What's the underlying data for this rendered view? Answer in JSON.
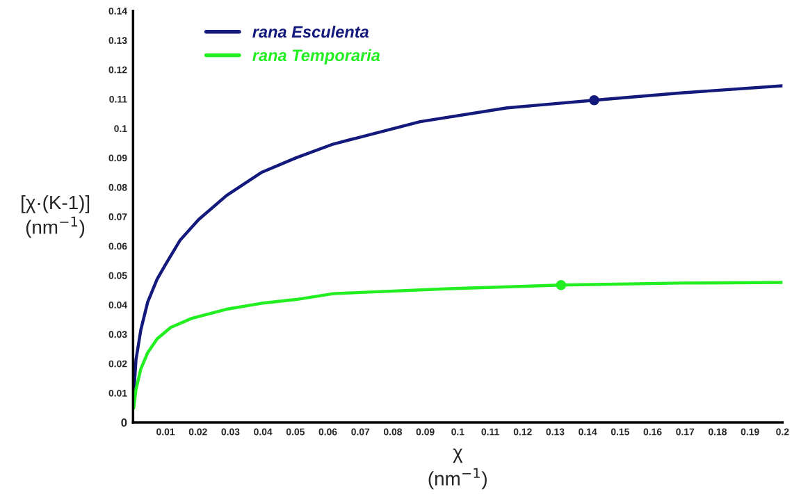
{
  "chart_data": {
    "type": "line",
    "xlabel": "χ\n(nm$^{−1}$)",
    "ylabel": "[χ·(K-1)]\n(nm$^{−1}$)",
    "series": [
      {
        "name": "rana Esculenta",
        "color": "#141a7c",
        "x": [
          0.0002,
          0.0009,
          0.0024,
          0.0045,
          0.0074,
          0.0102,
          0.0145,
          0.0202,
          0.0288,
          0.0395,
          0.0502,
          0.0617,
          0.0884,
          0.1152,
          0.142,
          0.1687,
          0.2
        ],
        "values": [
          0.0096,
          0.0213,
          0.0315,
          0.0409,
          0.0487,
          0.0541,
          0.062,
          0.069,
          0.0772,
          0.085,
          0.09,
          0.0947,
          0.1023,
          0.107,
          0.1096,
          0.1121,
          0.1145
        ]
      },
      {
        "name": "rana Temporaria",
        "color": "#22ee22",
        "x": [
          0.0002,
          0.0009,
          0.0024,
          0.0045,
          0.0074,
          0.0116,
          0.0181,
          0.0288,
          0.0395,
          0.0502,
          0.0617,
          0.0974,
          0.1318,
          0.1687,
          0.2
        ],
        "values": [
          0.0049,
          0.0112,
          0.0182,
          0.0237,
          0.0284,
          0.0323,
          0.0354,
          0.0385,
          0.0405,
          0.0418,
          0.0438,
          0.0455,
          0.0467,
          0.0474,
          0.0476
        ]
      },
      {
        "type": "scatter",
        "color": "#141a7c",
        "marker": "circle",
        "x": [
          0.142
        ],
        "values": [
          0.1096
        ]
      },
      {
        "type": "scatter",
        "color": "#22ee22",
        "marker": "circle",
        "x": [
          0.1318
        ],
        "values": [
          0.0467
        ]
      }
    ],
    "xlim": [
      0,
      0.2
    ],
    "ylim": [
      0,
      0.14
    ],
    "xticks": [
      0.01,
      0.02,
      0.03,
      0.04,
      0.05,
      0.06,
      0.07,
      0.08,
      0.09,
      0.1,
      0.11,
      0.12,
      0.13,
      0.14,
      0.15,
      0.16,
      0.17,
      0.18,
      0.19,
      0.2
    ],
    "yticks": [
      {
        "value": 0,
        "label": "0"
      },
      0.01,
      0.02,
      0.03,
      0.04,
      0.05,
      0.06,
      0.07,
      0.08,
      0.09,
      0.1,
      0.11,
      0.12,
      0.13,
      0.14
    ],
    "grid": false,
    "legend": "top left",
    "marker": "none",
    "line_style": "solid"
  }
}
